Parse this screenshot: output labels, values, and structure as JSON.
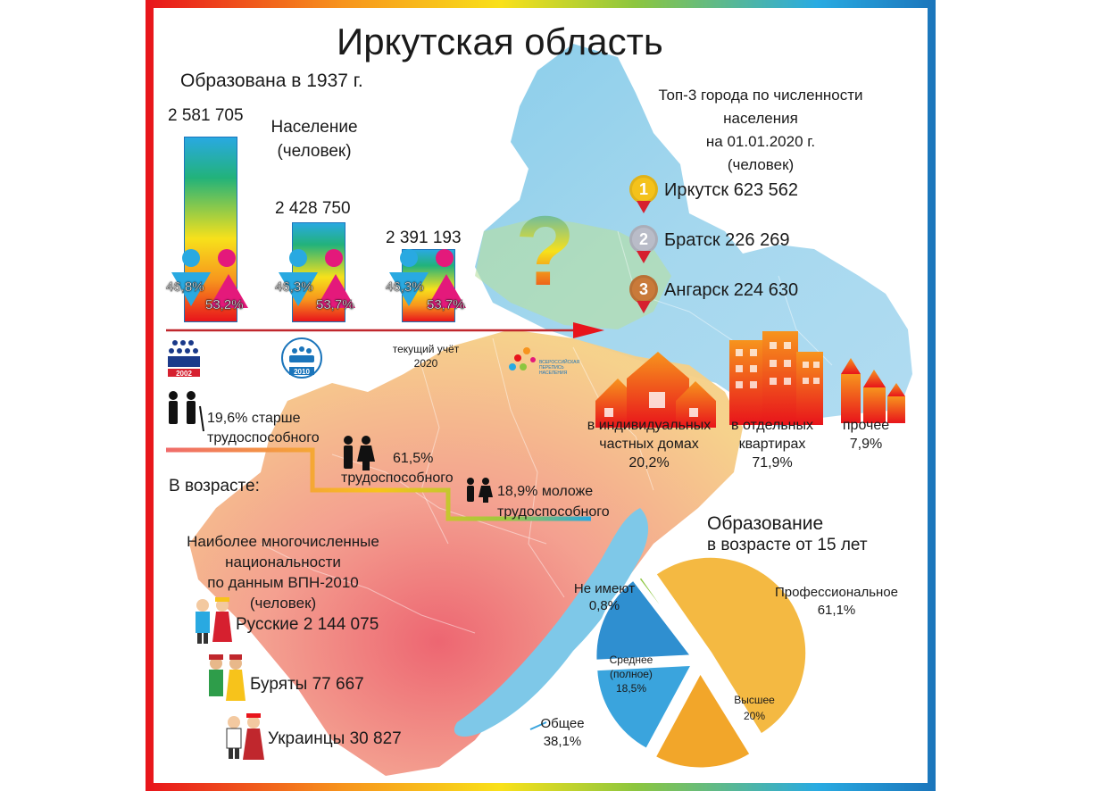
{
  "title": "Иркутская область",
  "founded": "Образована в 1937 г.",
  "population": {
    "label_line1": "Население",
    "label_line2": "(человек)",
    "bars": [
      {
        "value_text": "2 581 705",
        "value": 2581705,
        "male": "46,8%",
        "female": "53,2%",
        "census_label": "2002"
      },
      {
        "value_text": "2 428 750",
        "value": 2428750,
        "male": "46,3%",
        "female": "53,7%",
        "census_label": "2010"
      },
      {
        "value_text": "2 391 193",
        "value": 2391193,
        "male": "46,3%",
        "female": "53,7%",
        "census_label_line1": "текущий учёт",
        "census_label_line2": "2020"
      }
    ]
  },
  "census_logo_text": [
    "ВСЕРОССИЙСКАЯ",
    "ПЕРЕПИСЬ",
    "НАСЕЛЕНИЯ"
  ],
  "question_mark": "?",
  "top_cities": {
    "title_lines": [
      "Топ-3 города по численности",
      "населения",
      "на 01.01.2020 г.",
      "(человек)"
    ],
    "cities": [
      {
        "rank": "1",
        "text": "Иркутск 623 562",
        "medal_color": "#f4c21b"
      },
      {
        "rank": "2",
        "text": "Братск 226 269",
        "medal_color": "#b9bcc8"
      },
      {
        "rank": "3",
        "text": "Ангарск 224 630",
        "medal_color": "#c97a3a"
      }
    ]
  },
  "housing": [
    {
      "line1": "в индивидуальных",
      "line2": "частных домах",
      "value": "20,2%"
    },
    {
      "line1": "в отдельных",
      "line2": "квартирах",
      "value": "71,9%"
    },
    {
      "line1": "прочее",
      "line2": "",
      "value": "7,9%"
    }
  ],
  "age": {
    "label": "В возрасте:",
    "groups": [
      {
        "line1": "19,6% старше",
        "line2": "трудоспособного"
      },
      {
        "line1": "61,5%",
        "line2": "трудоспособного"
      },
      {
        "line1": "18,9% моложе",
        "line2": "трудоспособного"
      }
    ]
  },
  "nationalities": {
    "title_lines": [
      "Наиболее многочисленные",
      "национальности",
      "по данным ВПН-2010",
      "(человек)"
    ],
    "items": [
      {
        "text": "Русские 2 144 075"
      },
      {
        "text": "Буряты 77 667"
      },
      {
        "text": "Украинцы 30 827"
      }
    ]
  },
  "education": {
    "title": "Образование",
    "subtitle": "в возрасте от 15 лет",
    "chart_data": {
      "type": "pie",
      "slices": [
        {
          "label": "Профессиональное",
          "value": 61.1,
          "value_text": "61,1%",
          "color": "#f4b942"
        },
        {
          "label": "Высшее",
          "value": 20,
          "value_text": "20%",
          "color": "#f2a62a"
        },
        {
          "label": "Общее",
          "value": 38.1,
          "value_text": "38,1%",
          "color": "#3aa4dd"
        },
        {
          "label": "Среднее (полное)",
          "value": 18.5,
          "value_text": "18,5%",
          "color": "#2f8fd0"
        },
        {
          "label": "Не имеют",
          "value": 0.8,
          "value_text": "0,8%",
          "color": "#8cc63f"
        }
      ]
    },
    "labels": {
      "none_line1": "Не имеют",
      "none_line2": "0,8%",
      "prof_line1": "Профессиональное",
      "prof_line2": "61,1%",
      "mid_line1": "Среднее",
      "mid_line2": "(полное)",
      "mid_line3": "18,5%",
      "high_line1": "Высшее",
      "high_line2": "20%",
      "gen_line1": "Общее",
      "gen_line2": "38,1%"
    }
  }
}
